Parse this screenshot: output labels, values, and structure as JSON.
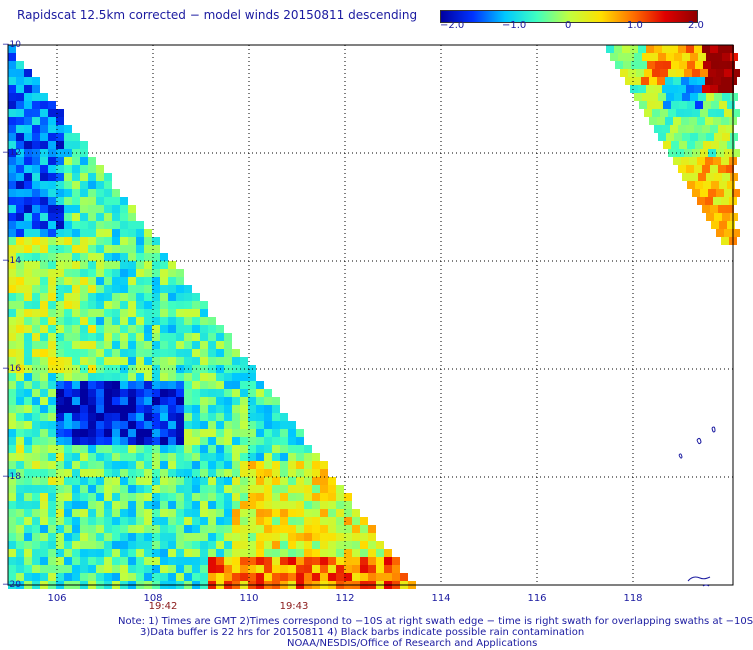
{
  "title": "Rapidscat 12.5km corrected − model winds 20150811 descending",
  "colorbar": {
    "ticks": [
      "−2.0",
      "−1.0",
      "0",
      "1.0",
      "2.0"
    ],
    "range": [
      -2.0,
      2.0
    ],
    "colors": [
      "#0000a0",
      "#0033ff",
      "#00c8ff",
      "#40ffc0",
      "#c0ff40",
      "#ffe000",
      "#ff7000",
      "#e00000",
      "#900000"
    ]
  },
  "axes": {
    "lat_labels": [
      "−10",
      "−12",
      "−14",
      "−16",
      "−18",
      "−20"
    ],
    "lon_labels": [
      "106",
      "108",
      "110",
      "112",
      "114",
      "116",
      "118"
    ]
  },
  "times": [
    "19:42",
    "19:43"
  ],
  "notes": [
    "Note: 1) Times are GMT 2)Times correspond to −10S at right swath edge − time is right swath for overlapping swaths at −10S",
    "3)Data buffer is 22 hrs for 20150811 4) Black barbs indicate possible rain contamination",
    "NOAA/NESDIS/Office of Research and Applications"
  ]
}
